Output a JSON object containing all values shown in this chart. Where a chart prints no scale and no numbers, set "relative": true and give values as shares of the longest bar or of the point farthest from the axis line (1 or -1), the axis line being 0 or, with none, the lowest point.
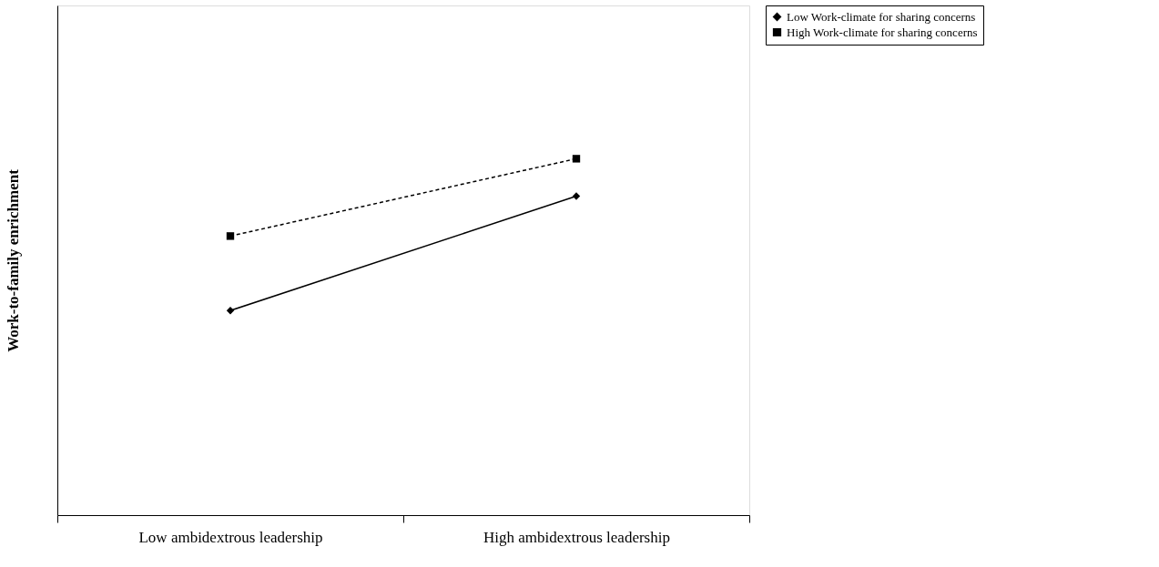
{
  "chart_data": {
    "type": "line",
    "relative": true,
    "ylabel": "Work-to-family enrichment",
    "categories": [
      "Low ambidextrous leadership",
      "High ambidextrous leadership"
    ],
    "legend": "right",
    "grid": false,
    "series": [
      {
        "name": "Low Work-climate for sharing concerns",
        "color": "#000000",
        "values": [
          0.574,
          0.895
        ],
        "marker": "diamond",
        "line_style": "solid"
      },
      {
        "name": "High Work-climate for sharing concerns",
        "color": "#000000",
        "values": [
          0.783,
          1
        ],
        "marker": "square",
        "line_style": "dashed"
      }
    ]
  }
}
